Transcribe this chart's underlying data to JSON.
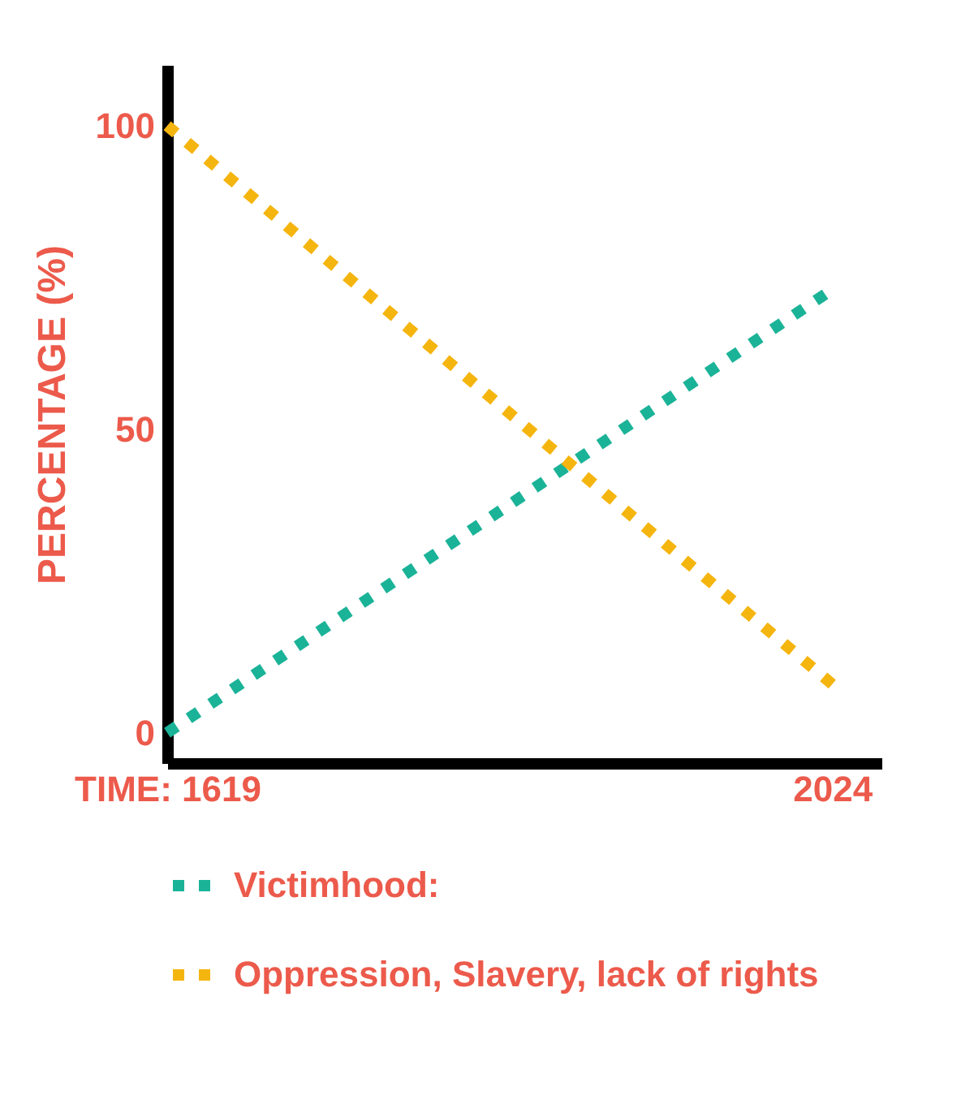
{
  "chart_data": {
    "type": "line",
    "ylabel": "PERCENTAGE (%)",
    "x": [
      1619,
      2024
    ],
    "series": [
      {
        "name": "Victimhood:",
        "color": "#1bb398",
        "values": [
          0,
          73
        ]
      },
      {
        "name": "Oppression, Slavery, lack of rights",
        "color": "#f5b50f",
        "values": [
          100,
          8
        ]
      }
    ],
    "xlim": [
      1619,
      2054
    ],
    "ylim": [
      -5,
      110
    ],
    "xticks": [
      {
        "value": 1619,
        "label": "TIME: 1619"
      },
      2024
    ],
    "yticks": [
      0,
      50,
      100
    ],
    "grid": false,
    "legend": "bottom",
    "marker": "none",
    "line_style": "dotted"
  }
}
